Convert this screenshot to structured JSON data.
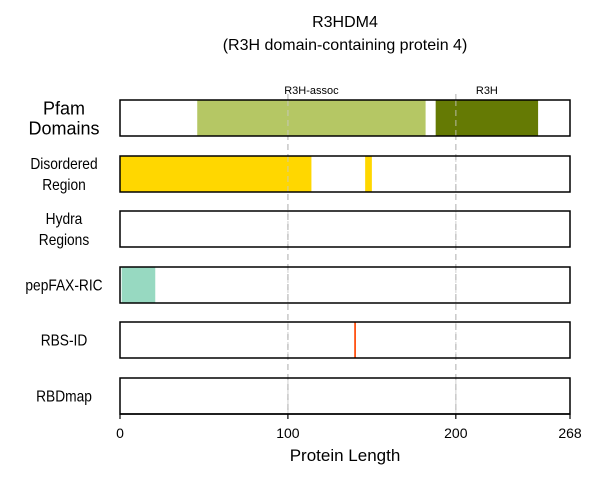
{
  "chart_data": {
    "type": "bar",
    "title_line1": "R3HDM4",
    "title_line2": "(R3H domain-containing protein 4)",
    "xlabel": "Protein Length",
    "xlim": [
      0,
      268
    ],
    "xticks": [
      {
        "value": 0,
        "label": "0"
      },
      {
        "value": 100,
        "label": "100"
      },
      {
        "value": 200,
        "label": "200"
      },
      {
        "value": 268,
        "label": "268"
      }
    ],
    "gridlines": [
      100,
      200
    ],
    "tracks": [
      {
        "id": "pfam",
        "label_lines": [
          "Pfam",
          "Domains"
        ],
        "emphasis": true,
        "segments": [
          {
            "start": 46,
            "end": 182,
            "color": "#b5c764",
            "label": "R3H-assoc"
          },
          {
            "start": 188,
            "end": 249,
            "color": "#657a04",
            "label": "R3H"
          }
        ]
      },
      {
        "id": "disordered",
        "label_lines": [
          "Disordered",
          "Region"
        ],
        "segments": [
          {
            "start": 0,
            "end": 114,
            "color": "#ffd700"
          },
          {
            "start": 146,
            "end": 150,
            "color": "#ffd700"
          }
        ]
      },
      {
        "id": "hydra",
        "label_lines": [
          "Hydra",
          "Regions"
        ],
        "segments": []
      },
      {
        "id": "pepfax",
        "label_lines": [
          "pepFAX-RIC"
        ],
        "segments": [
          {
            "start": 1,
            "end": 21,
            "color": "#97d9c1"
          }
        ]
      },
      {
        "id": "rbsid",
        "label_lines": [
          "RBS-ID"
        ],
        "segments": [
          {
            "start": 139.5,
            "end": 140.5,
            "color": "#ff4500"
          }
        ]
      },
      {
        "id": "rbdmap",
        "label_lines": [
          "RBDmap"
        ],
        "segments": []
      }
    ]
  }
}
